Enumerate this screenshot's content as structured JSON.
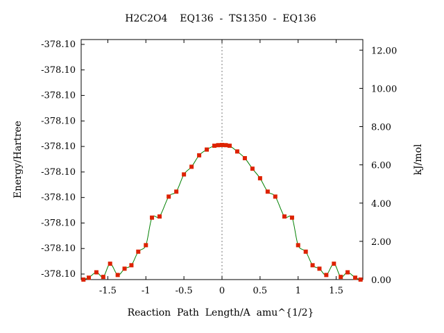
{
  "chart_data": {
    "type": "line",
    "title": "H2C2O4    EQ136  -  TS1350  -  EQ136",
    "xlabel": "Reaction  Path  Length/A  amu^{1/2}",
    "ylabel_left": "Energy/Hartree",
    "ylabel_right": "kJ/mol",
    "xlim": [
      -1.85,
      1.85
    ],
    "x_ticks": [
      -1.5,
      -1,
      -0.5,
      0,
      0.5,
      1,
      1.5
    ],
    "x_tick_labels": [
      "-1.5",
      "-1",
      "-0.5",
      "0",
      "0.5",
      "1",
      "1.5"
    ],
    "y_left_tick_labels": [
      "-378.10",
      "-378.10",
      "-378.10",
      "-378.10",
      "-378.10",
      "-378.10",
      "-378.10",
      "-378.10",
      "-378.10",
      "-378.10"
    ],
    "y_right_ticks": [
      0,
      2,
      4,
      6,
      8,
      10,
      12
    ],
    "y_right_tick_labels": [
      "0.00",
      "2.00",
      "4.00",
      "6.00",
      "8.00",
      "10.00",
      "12.00"
    ],
    "ylim_right": [
      0,
      12.3
    ],
    "ts_marker_x": 0,
    "grid": false,
    "series": [
      {
        "color": "#008000",
        "marker_color": "#dd2200",
        "x": [
          -1.82,
          -1.75,
          -1.65,
          -1.56,
          -1.47,
          -1.37,
          -1.28,
          -1.19,
          -1.1,
          -1.0,
          -0.92,
          -0.82,
          -0.7,
          -0.6,
          -0.5,
          -0.4,
          -0.3,
          -0.2,
          -0.1,
          -0.05,
          0.0,
          0.05,
          0.1,
          0.2,
          0.3,
          0.4,
          0.5,
          0.6,
          0.7,
          0.82,
          0.92,
          1.0,
          1.1,
          1.19,
          1.28,
          1.37,
          1.47,
          1.56,
          1.65,
          1.75,
          1.82
        ],
        "y": [
          0.0,
          0.1,
          0.38,
          0.14,
          0.83,
          0.24,
          0.57,
          0.75,
          1.46,
          1.8,
          3.24,
          3.3,
          4.34,
          4.6,
          5.5,
          5.9,
          6.5,
          6.8,
          7.0,
          7.03,
          7.04,
          7.03,
          7.0,
          6.7,
          6.35,
          5.8,
          5.3,
          4.6,
          4.34,
          3.3,
          3.24,
          1.8,
          1.46,
          0.75,
          0.57,
          0.24,
          0.83,
          0.14,
          0.38,
          0.1,
          0.0
        ]
      }
    ]
  }
}
